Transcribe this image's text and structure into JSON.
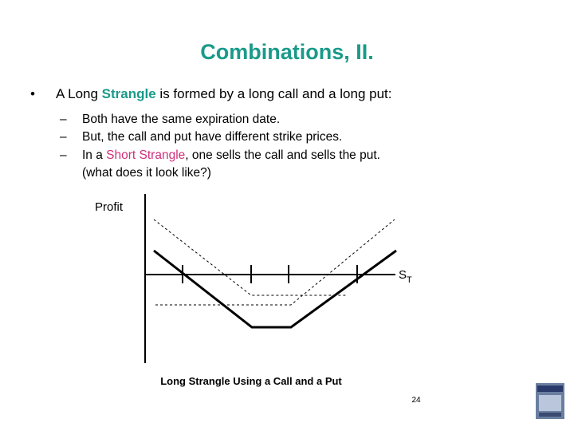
{
  "title": "Combinations, II.",
  "bullet": {
    "marker": "•",
    "parts": [
      "A Long ",
      "Strangle",
      " is formed by a long call and a long put:"
    ]
  },
  "sub_marker": "–",
  "sub_bullets": [
    {
      "parts": [
        "Both have the same expiration date."
      ]
    },
    {
      "parts": [
        "But, the call and put have different strike prices."
      ]
    },
    {
      "parts": [
        "In a ",
        "Short Strangle",
        ", one sells the call and sells the put."
      ],
      "continuation": "(what does it look like?)"
    }
  ],
  "diagram": {
    "y_label": "Profit",
    "x_label": {
      "base": "S",
      "sub": "T"
    },
    "caption": "Long Strangle Using a Call and a Put"
  },
  "page_number": "24"
}
